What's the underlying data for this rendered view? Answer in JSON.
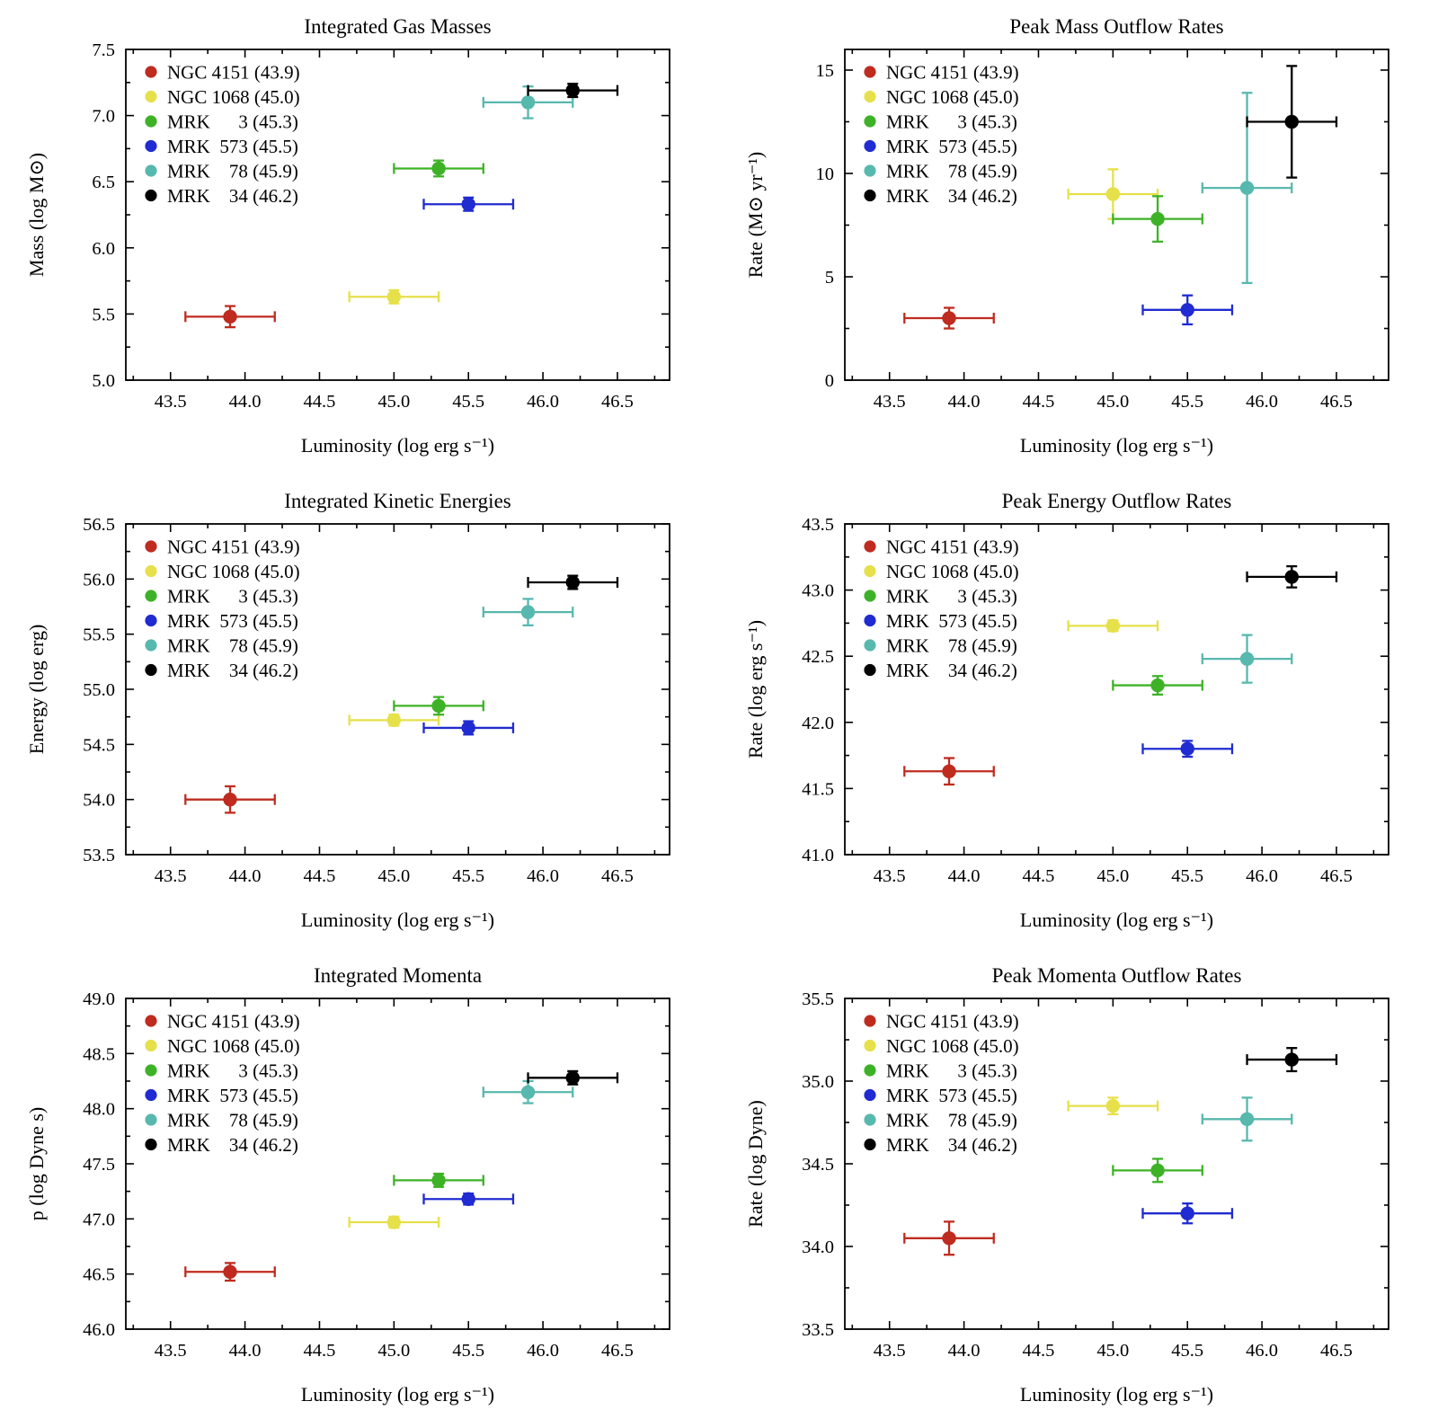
{
  "page": {
    "background": "#ffffff"
  },
  "legend": {
    "entries": [
      {
        "label": "NGC 4151 (43.9)",
        "color": "#bf2b1f"
      },
      {
        "label": "NGC 1068 (45.0)",
        "color": "#e6e04a"
      },
      {
        "label": "MRK      3 (45.3)",
        "color": "#3eb227"
      },
      {
        "label": "MRK  573 (45.5)",
        "color": "#202bd1"
      },
      {
        "label": "MRK    78 (45.9)",
        "color": "#57b8ae"
      },
      {
        "label": "MRK    34 (46.2)",
        "color": "#000000"
      }
    ]
  },
  "chart_data": [
    {
      "type": "scatter",
      "title": "Integrated Gas Masses",
      "xlabel": "Luminosity (log erg s⁻¹)",
      "ylabel": "Mass (log M⊙)",
      "xlim": [
        43.2,
        46.85
      ],
      "ylim": [
        5.0,
        7.5
      ],
      "xticks": [
        43.5,
        44.0,
        44.5,
        45.0,
        45.5,
        46.0,
        46.5
      ],
      "xtick_labels": [
        "43.5",
        "44.0",
        "44.5",
        "45.0",
        "45.5",
        "46.0",
        "46.5"
      ],
      "yticks": [
        5.0,
        5.5,
        6.0,
        6.5,
        7.0,
        7.5
      ],
      "ytick_labels": [
        "5.0",
        "5.5",
        "6.0",
        "6.5",
        "7.0",
        "7.5"
      ],
      "legend_position": "top-left",
      "series": [
        {
          "name": "NGC 4151",
          "label": "NGC 4151 (43.9)",
          "color": "#bf2b1f",
          "x": 43.9,
          "xerr": 0.3,
          "y": 5.48,
          "yerr": 0.08
        },
        {
          "name": "NGC 1068",
          "label": "NGC 1068 (45.0)",
          "color": "#e6e04a",
          "x": 45.0,
          "xerr": 0.3,
          "y": 5.63,
          "yerr": 0.05
        },
        {
          "name": "MRK 3",
          "label": "MRK      3 (45.3)",
          "color": "#3eb227",
          "x": 45.3,
          "xerr": 0.3,
          "y": 6.6,
          "yerr": 0.06
        },
        {
          "name": "MRK 573",
          "label": "MRK  573 (45.5)",
          "color": "#202bd1",
          "x": 45.5,
          "xerr": 0.3,
          "y": 6.33,
          "yerr": 0.05
        },
        {
          "name": "MRK 78",
          "label": "MRK    78 (45.9)",
          "color": "#57b8ae",
          "x": 45.9,
          "xerr": 0.3,
          "y": 7.1,
          "yerr": 0.12
        },
        {
          "name": "MRK 34",
          "label": "MRK    34 (46.2)",
          "color": "#000000",
          "x": 46.2,
          "xerr": 0.3,
          "y": 7.19,
          "yerr": 0.05
        }
      ]
    },
    {
      "type": "scatter",
      "title": "Peak Mass Outflow Rates",
      "xlabel": "Luminosity (log erg s⁻¹)",
      "ylabel": "Rate (M⊙ yr⁻¹)",
      "xlim": [
        43.2,
        46.85
      ],
      "ylim": [
        0,
        16
      ],
      "xticks": [
        43.5,
        44.0,
        44.5,
        45.0,
        45.5,
        46.0,
        46.5
      ],
      "xtick_labels": [
        "43.5",
        "44.0",
        "44.5",
        "45.0",
        "45.5",
        "46.0",
        "46.5"
      ],
      "yticks": [
        0,
        5,
        10,
        15
      ],
      "ytick_labels": [
        "0",
        "5",
        "10",
        "15"
      ],
      "legend_position": "top-left",
      "series": [
        {
          "name": "NGC 4151",
          "label": "NGC 4151 (43.9)",
          "color": "#bf2b1f",
          "x": 43.9,
          "xerr": 0.3,
          "y": 3.0,
          "yerr": 0.5
        },
        {
          "name": "NGC 1068",
          "label": "NGC 1068 (45.0)",
          "color": "#e6e04a",
          "x": 45.0,
          "xerr": 0.3,
          "y": 9.0,
          "yerr": 1.2
        },
        {
          "name": "MRK 3",
          "label": "MRK      3 (45.3)",
          "color": "#3eb227",
          "x": 45.3,
          "xerr": 0.3,
          "y": 7.8,
          "yerr": 1.1
        },
        {
          "name": "MRK 573",
          "label": "MRK  573 (45.5)",
          "color": "#202bd1",
          "x": 45.5,
          "xerr": 0.3,
          "y": 3.4,
          "yerr": 0.7
        },
        {
          "name": "MRK 78",
          "label": "MRK    78 (45.9)",
          "color": "#57b8ae",
          "x": 45.9,
          "xerr": 0.3,
          "y": 9.3,
          "yerr": 4.6
        },
        {
          "name": "MRK 34",
          "label": "MRK    34 (46.2)",
          "color": "#000000",
          "x": 46.2,
          "xerr": 0.3,
          "y": 12.5,
          "yerr": 2.7
        }
      ]
    },
    {
      "type": "scatter",
      "title": "Integrated Kinetic Energies",
      "xlabel": "Luminosity (log erg s⁻¹)",
      "ylabel": "Energy (log erg)",
      "xlim": [
        43.2,
        46.85
      ],
      "ylim": [
        53.5,
        56.5
      ],
      "xticks": [
        43.5,
        44.0,
        44.5,
        45.0,
        45.5,
        46.0,
        46.5
      ],
      "xtick_labels": [
        "43.5",
        "44.0",
        "44.5",
        "45.0",
        "45.5",
        "46.0",
        "46.5"
      ],
      "yticks": [
        53.5,
        54.0,
        54.5,
        55.0,
        55.5,
        56.0,
        56.5
      ],
      "ytick_labels": [
        "53.5",
        "54.0",
        "54.5",
        "55.0",
        "55.5",
        "56.0",
        "56.5"
      ],
      "legend_position": "top-left",
      "series": [
        {
          "name": "NGC 4151",
          "label": "NGC 4151 (43.9)",
          "color": "#bf2b1f",
          "x": 43.9,
          "xerr": 0.3,
          "y": 54.0,
          "yerr": 0.12
        },
        {
          "name": "NGC 1068",
          "label": "NGC 1068 (45.0)",
          "color": "#e6e04a",
          "x": 45.0,
          "xerr": 0.3,
          "y": 54.72,
          "yerr": 0.05
        },
        {
          "name": "MRK 3",
          "label": "MRK      3 (45.3)",
          "color": "#3eb227",
          "x": 45.3,
          "xerr": 0.3,
          "y": 54.85,
          "yerr": 0.08
        },
        {
          "name": "MRK 573",
          "label": "MRK  573 (45.5)",
          "color": "#202bd1",
          "x": 45.5,
          "xerr": 0.3,
          "y": 54.65,
          "yerr": 0.06
        },
        {
          "name": "MRK 78",
          "label": "MRK    78 (45.9)",
          "color": "#57b8ae",
          "x": 45.9,
          "xerr": 0.3,
          "y": 55.7,
          "yerr": 0.12
        },
        {
          "name": "MRK 34",
          "label": "MRK    34 (46.2)",
          "color": "#000000",
          "x": 46.2,
          "xerr": 0.3,
          "y": 55.97,
          "yerr": 0.06
        }
      ]
    },
    {
      "type": "scatter",
      "title": "Peak Energy Outflow Rates",
      "xlabel": "Luminosity (log erg s⁻¹)",
      "ylabel": "Rate (log erg s⁻¹)",
      "xlim": [
        43.2,
        46.85
      ],
      "ylim": [
        41.0,
        43.5
      ],
      "xticks": [
        43.5,
        44.0,
        44.5,
        45.0,
        45.5,
        46.0,
        46.5
      ],
      "xtick_labels": [
        "43.5",
        "44.0",
        "44.5",
        "45.0",
        "45.5",
        "46.0",
        "46.5"
      ],
      "yticks": [
        41.0,
        41.5,
        42.0,
        42.5,
        43.0,
        43.5
      ],
      "ytick_labels": [
        "41.0",
        "41.5",
        "42.0",
        "42.5",
        "43.0",
        "43.5"
      ],
      "legend_position": "top-left",
      "series": [
        {
          "name": "NGC 4151",
          "label": "NGC 4151 (43.9)",
          "color": "#bf2b1f",
          "x": 43.9,
          "xerr": 0.3,
          "y": 41.63,
          "yerr": 0.1
        },
        {
          "name": "NGC 1068",
          "label": "NGC 1068 (45.0)",
          "color": "#e6e04a",
          "x": 45.0,
          "xerr": 0.3,
          "y": 42.73,
          "yerr": 0.04
        },
        {
          "name": "MRK 3",
          "label": "MRK      3 (45.3)",
          "color": "#3eb227",
          "x": 45.3,
          "xerr": 0.3,
          "y": 42.28,
          "yerr": 0.07
        },
        {
          "name": "MRK 573",
          "label": "MRK  573 (45.5)",
          "color": "#202bd1",
          "x": 45.5,
          "xerr": 0.3,
          "y": 41.8,
          "yerr": 0.06
        },
        {
          "name": "MRK 78",
          "label": "MRK    78 (45.9)",
          "color": "#57b8ae",
          "x": 45.9,
          "xerr": 0.3,
          "y": 42.48,
          "yerr": 0.18
        },
        {
          "name": "MRK 34",
          "label": "MRK    34 (46.2)",
          "color": "#000000",
          "x": 46.2,
          "xerr": 0.3,
          "y": 43.1,
          "yerr": 0.08
        }
      ]
    },
    {
      "type": "scatter",
      "title": "Integrated Momenta",
      "xlabel": "Luminosity (log erg s⁻¹)",
      "ylabel": "p (log Dyne s)",
      "xlim": [
        43.2,
        46.85
      ],
      "ylim": [
        46.0,
        49.0
      ],
      "xticks": [
        43.5,
        44.0,
        44.5,
        45.0,
        45.5,
        46.0,
        46.5
      ],
      "xtick_labels": [
        "43.5",
        "44.0",
        "44.5",
        "45.0",
        "45.5",
        "46.0",
        "46.5"
      ],
      "yticks": [
        46.0,
        46.5,
        47.0,
        47.5,
        48.0,
        48.5,
        49.0
      ],
      "ytick_labels": [
        "46.0",
        "46.5",
        "47.0",
        "47.5",
        "48.0",
        "48.5",
        "49.0"
      ],
      "legend_position": "top-left",
      "series": [
        {
          "name": "NGC 4151",
          "label": "NGC 4151 (43.9)",
          "color": "#bf2b1f",
          "x": 43.9,
          "xerr": 0.3,
          "y": 46.52,
          "yerr": 0.08
        },
        {
          "name": "NGC 1068",
          "label": "NGC 1068 (45.0)",
          "color": "#e6e04a",
          "x": 45.0,
          "xerr": 0.3,
          "y": 46.97,
          "yerr": 0.05
        },
        {
          "name": "MRK 3",
          "label": "MRK      3 (45.3)",
          "color": "#3eb227",
          "x": 45.3,
          "xerr": 0.3,
          "y": 47.35,
          "yerr": 0.06
        },
        {
          "name": "MRK 573",
          "label": "MRK  573 (45.5)",
          "color": "#202bd1",
          "x": 45.5,
          "xerr": 0.3,
          "y": 47.18,
          "yerr": 0.05
        },
        {
          "name": "MRK 78",
          "label": "MRK    78 (45.9)",
          "color": "#57b8ae",
          "x": 45.9,
          "xerr": 0.3,
          "y": 48.15,
          "yerr": 0.1
        },
        {
          "name": "MRK 34",
          "label": "MRK    34 (46.2)",
          "color": "#000000",
          "x": 46.2,
          "xerr": 0.3,
          "y": 48.28,
          "yerr": 0.06
        }
      ]
    },
    {
      "type": "scatter",
      "title": "Peak Momenta Outflow Rates",
      "xlabel": "Luminosity (log erg s⁻¹)",
      "ylabel": "Rate (log Dyne)",
      "xlim": [
        43.2,
        46.85
      ],
      "ylim": [
        33.5,
        35.5
      ],
      "xticks": [
        43.5,
        44.0,
        44.5,
        45.0,
        45.5,
        46.0,
        46.5
      ],
      "xtick_labels": [
        "43.5",
        "44.0",
        "44.5",
        "45.0",
        "45.5",
        "46.0",
        "46.5"
      ],
      "yticks": [
        33.5,
        34.0,
        34.5,
        35.0,
        35.5
      ],
      "ytick_labels": [
        "33.5",
        "34.0",
        "34.5",
        "35.0",
        "35.5"
      ],
      "legend_position": "top-left",
      "series": [
        {
          "name": "NGC 4151",
          "label": "NGC 4151 (43.9)",
          "color": "#bf2b1f",
          "x": 43.9,
          "xerr": 0.3,
          "y": 34.05,
          "yerr": 0.1
        },
        {
          "name": "NGC 1068",
          "label": "NGC 1068 (45.0)",
          "color": "#e6e04a",
          "x": 45.0,
          "xerr": 0.3,
          "y": 34.85,
          "yerr": 0.05
        },
        {
          "name": "MRK 3",
          "label": "MRK      3 (45.3)",
          "color": "#3eb227",
          "x": 45.3,
          "xerr": 0.3,
          "y": 34.46,
          "yerr": 0.07
        },
        {
          "name": "MRK 573",
          "label": "MRK  573 (45.5)",
          "color": "#202bd1",
          "x": 45.5,
          "xerr": 0.3,
          "y": 34.2,
          "yerr": 0.06
        },
        {
          "name": "MRK 78",
          "label": "MRK    78 (45.9)",
          "color": "#57b8ae",
          "x": 45.9,
          "xerr": 0.3,
          "y": 34.77,
          "yerr": 0.13
        },
        {
          "name": "MRK 34",
          "label": "MRK    34 (46.2)",
          "color": "#000000",
          "x": 46.2,
          "xerr": 0.3,
          "y": 35.13,
          "yerr": 0.07
        }
      ]
    }
  ]
}
